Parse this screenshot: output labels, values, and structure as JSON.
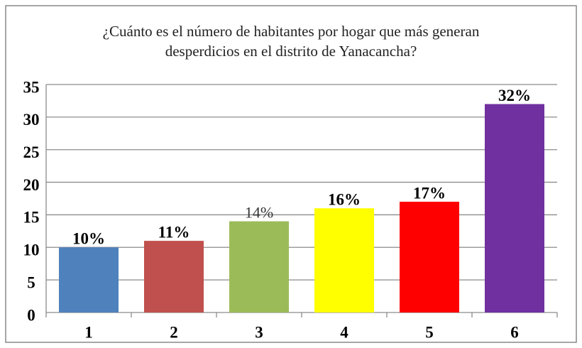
{
  "chart_data": {
    "type": "bar",
    "title": "¿Cuánto es el número de habitantes por hogar que más generan desperdicios en el distrito de Yanacancha?",
    "categories": [
      "1",
      "2",
      "3",
      "4",
      "5",
      "6"
    ],
    "values": [
      10,
      11,
      14,
      16,
      17,
      32
    ],
    "value_labels": [
      "10%",
      "11%",
      "14%",
      "16%",
      "17%",
      "32%"
    ],
    "colors": [
      "#4f81bd",
      "#c0504d",
      "#9bbb59",
      "#ffff00",
      "#ff0000",
      "#7030a0"
    ],
    "ylim": [
      0,
      35
    ],
    "yticks": [
      0,
      5,
      10,
      15,
      20,
      25,
      30,
      35
    ],
    "grid": true
  }
}
